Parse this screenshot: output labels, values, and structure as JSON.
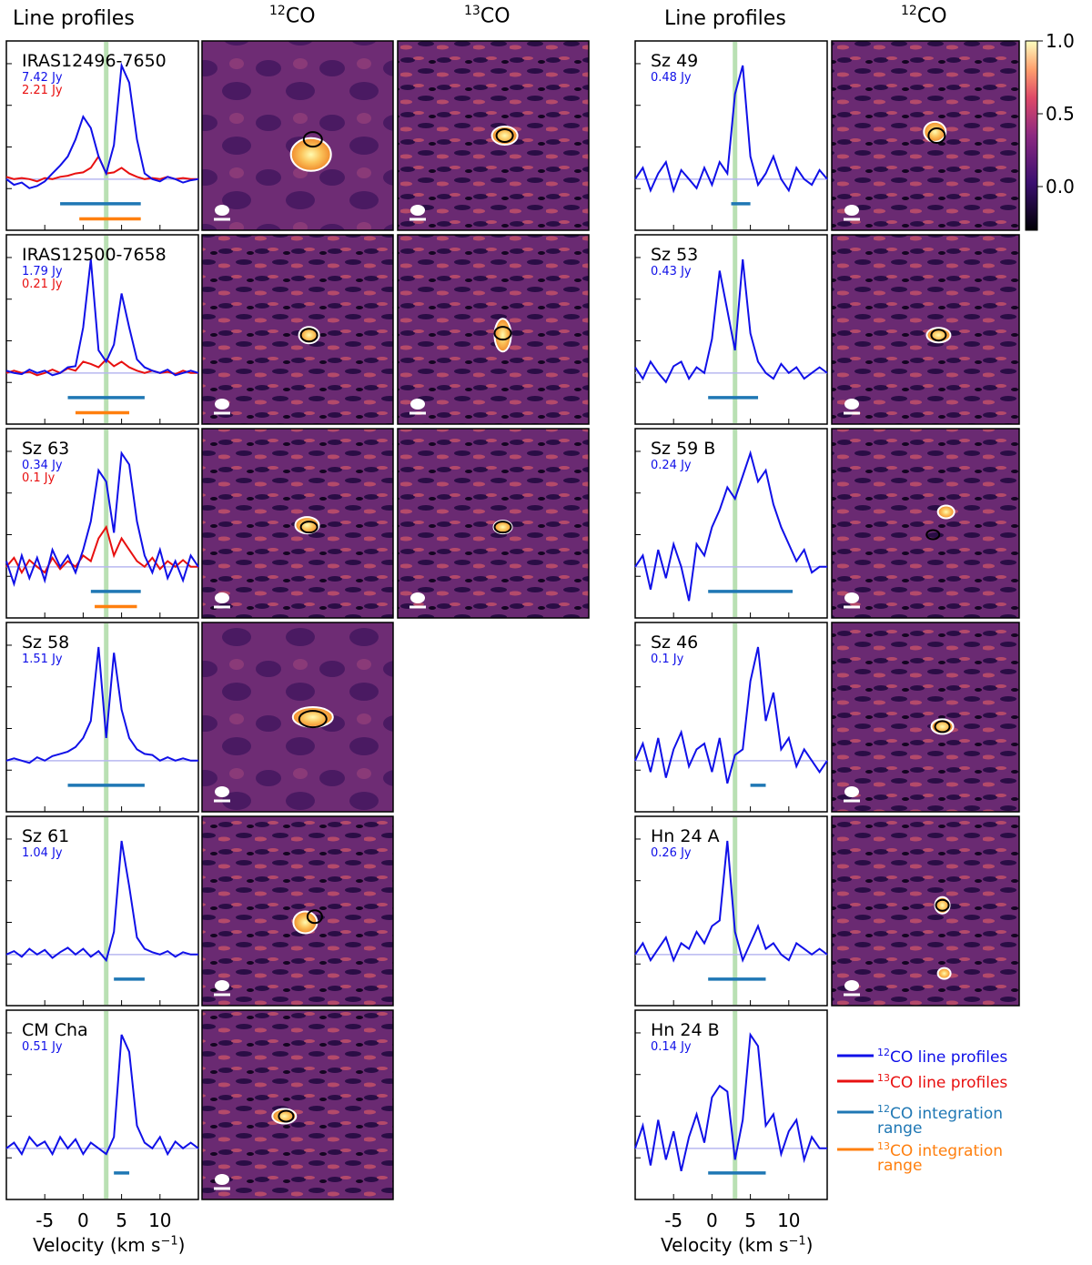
{
  "headers": {
    "line_profiles": "Line profiles",
    "co12_pre": "12",
    "co12_post": "CO",
    "co13_pre": "13",
    "co13_post": "CO"
  },
  "xaxis": {
    "label_main": "Velocity (km s",
    "label_exp": "−1",
    "label_close": ")",
    "ticks": [
      -5,
      0,
      5,
      10
    ],
    "tick_labels": [
      "-5",
      "0",
      "5",
      "10"
    ],
    "xlim": [
      -10,
      15
    ],
    "systemic_velocity": 3
  },
  "colorbar": {
    "ticks": [
      1.0,
      0.5,
      0.0
    ],
    "tick_labels": [
      "1.0",
      "0.5",
      "0.0"
    ],
    "range": [
      -0.3,
      1.0
    ]
  },
  "colors": {
    "co12_line": "#1010e8",
    "co13_line": "#e81010",
    "co12_range": "#1f77b4",
    "co13_range": "#ff7f0e",
    "systemic": "#a8d8a0",
    "contour": "#ffffff",
    "ellipse": "#000000"
  },
  "legend": [
    {
      "pre": "12",
      "text": "CO line profiles",
      "color": "#1010e8",
      "kind": "line"
    },
    {
      "pre": "13",
      "text": "CO line profiles",
      "color": "#e81010",
      "kind": "line"
    },
    {
      "pre": "12",
      "text": "CO integration",
      "text2": "range",
      "color": "#1f77b4",
      "kind": "range"
    },
    {
      "pre": "13",
      "text": "CO integration",
      "text2": "range",
      "color": "#ff7f0e",
      "kind": "range"
    }
  ],
  "chart_data": [
    {
      "type": "line",
      "name": "IRAS12496-7650",
      "flux12": "7.42 Jy",
      "flux13": "2.21 Jy",
      "x": [
        -10,
        -9,
        -8,
        -7,
        -6,
        -5,
        -4,
        -3,
        -2,
        -1,
        0,
        1,
        2,
        3,
        4,
        5,
        6,
        7,
        8,
        9,
        10,
        11,
        12,
        13,
        14,
        15
      ],
      "series12": [
        0.0,
        -0.05,
        -0.03,
        -0.08,
        -0.06,
        -0.02,
        0.05,
        0.12,
        0.2,
        0.35,
        0.55,
        0.45,
        0.2,
        0.05,
        0.3,
        1.0,
        0.85,
        0.35,
        0.05,
        0.0,
        -0.02,
        0.02,
        0.0,
        -0.03,
        -0.01,
        0.0
      ],
      "series13": [
        0.02,
        0.0,
        0.01,
        0.0,
        -0.02,
        0.01,
        0.0,
        0.02,
        0.03,
        0.05,
        0.06,
        0.1,
        0.2,
        0.05,
        0.06,
        0.1,
        0.05,
        0.02,
        0.0,
        0.01,
        0.0,
        0.02,
        0.0,
        0.01,
        0.0,
        0.0
      ],
      "range12": [
        -3,
        7.5
      ],
      "range13": [
        -0.5,
        7.5
      ]
    },
    {
      "type": "line",
      "name": "IRAS12500-7658",
      "flux12": "1.79 Jy",
      "flux13": "0.21 Jy",
      "x": [
        -10,
        -9,
        -8,
        -7,
        -6,
        -5,
        -4,
        -3,
        -2,
        -1,
        0,
        1,
        2,
        3,
        4,
        5,
        6,
        7,
        8,
        9,
        10,
        11,
        12,
        13,
        14,
        15
      ],
      "series12": [
        0.02,
        0.0,
        -0.01,
        0.03,
        0.0,
        0.02,
        -0.02,
        0.0,
        0.05,
        0.06,
        0.4,
        1.0,
        0.2,
        0.1,
        0.25,
        0.7,
        0.4,
        0.12,
        0.05,
        0.02,
        0.0,
        0.03,
        -0.02,
        0.0,
        0.02,
        0.0
      ],
      "series13": [
        0.0,
        0.02,
        0.0,
        0.01,
        -0.02,
        0.0,
        0.03,
        0.0,
        0.04,
        0.02,
        0.1,
        0.08,
        0.05,
        0.12,
        0.06,
        0.1,
        0.05,
        0.02,
        0.0,
        0.02,
        0.0,
        0.01,
        -0.01,
        0.02,
        0.0,
        0.0
      ],
      "range12": [
        -2,
        8
      ],
      "range13": [
        -1,
        6
      ]
    },
    {
      "type": "line",
      "name": "Sz 63",
      "flux12": "0.34 Jy",
      "flux13": "0.1 Jy",
      "x": [
        -10,
        -9,
        -8,
        -7,
        -6,
        -5,
        -4,
        -3,
        -2,
        -1,
        0,
        1,
        2,
        3,
        4,
        5,
        6,
        7,
        8,
        9,
        10,
        11,
        12,
        13,
        14,
        15
      ],
      "series12": [
        0.05,
        -0.15,
        0.1,
        -0.1,
        0.08,
        -0.12,
        0.15,
        0.0,
        0.1,
        -0.05,
        0.15,
        0.4,
        0.85,
        0.75,
        0.3,
        1.0,
        0.9,
        0.4,
        0.1,
        -0.05,
        0.15,
        -0.1,
        0.05,
        -0.12,
        0.1,
        0.0
      ],
      "series13": [
        0.0,
        0.08,
        -0.05,
        0.06,
        0.0,
        -0.05,
        0.08,
        -0.02,
        0.05,
        0.0,
        0.1,
        0.05,
        0.25,
        0.35,
        0.1,
        0.25,
        0.15,
        0.05,
        0.0,
        0.08,
        -0.02,
        0.05,
        0.0,
        0.06,
        0.0,
        0.0
      ],
      "range12": [
        1,
        7.5
      ],
      "range13": [
        1.5,
        7
      ]
    },
    {
      "type": "line",
      "name": "Sz 58",
      "flux12": "1.51 Jy",
      "x": [
        -10,
        -9,
        -8,
        -7,
        -6,
        -5,
        -4,
        -3,
        -2,
        -1,
        0,
        1,
        2,
        3,
        4,
        5,
        6,
        7,
        8,
        9,
        10,
        11,
        12,
        13,
        14,
        15
      ],
      "series12": [
        0.0,
        0.02,
        0.0,
        -0.02,
        0.03,
        0.0,
        0.04,
        0.06,
        0.08,
        0.12,
        0.2,
        0.35,
        1.0,
        0.2,
        0.95,
        0.45,
        0.2,
        0.1,
        0.06,
        0.05,
        0.0,
        0.03,
        0.0,
        0.02,
        0.0,
        0.0
      ],
      "range12": [
        -2,
        8
      ]
    },
    {
      "type": "line",
      "name": "Sz 61",
      "flux12": "1.04 Jy",
      "x": [
        -10,
        -9,
        -8,
        -7,
        -6,
        -5,
        -4,
        -3,
        -2,
        -1,
        0,
        1,
        2,
        3,
        4,
        5,
        6,
        7,
        8,
        9,
        10,
        11,
        12,
        13,
        14,
        15
      ],
      "series12": [
        0.0,
        0.03,
        -0.02,
        0.05,
        0.0,
        0.04,
        -0.03,
        0.02,
        0.06,
        0.0,
        0.05,
        -0.02,
        0.03,
        -0.05,
        0.2,
        1.0,
        0.6,
        0.15,
        0.05,
        0.02,
        0.0,
        0.03,
        -0.02,
        0.02,
        0.0,
        0.0
      ],
      "range12": [
        4,
        8
      ]
    },
    {
      "type": "line",
      "name": "CM Cha",
      "flux12": "0.51 Jy",
      "x": [
        -10,
        -9,
        -8,
        -7,
        -6,
        -5,
        -4,
        -3,
        -2,
        -1,
        0,
        1,
        2,
        3,
        4,
        5,
        6,
        7,
        8,
        9,
        10,
        11,
        12,
        13,
        14,
        15
      ],
      "series12": [
        0.0,
        0.05,
        -0.05,
        0.1,
        0.02,
        0.06,
        -0.05,
        0.1,
        0.0,
        0.08,
        -0.05,
        0.05,
        0.0,
        -0.05,
        0.1,
        1.0,
        0.85,
        0.2,
        0.05,
        0.0,
        0.1,
        -0.05,
        0.06,
        0.0,
        0.05,
        0.0
      ],
      "range12": [
        4,
        6
      ]
    },
    {
      "type": "line",
      "name": "Sz 49",
      "flux12": "0.48 Jy",
      "x": [
        -10,
        -9,
        -8,
        -7,
        -6,
        -5,
        -4,
        -3,
        -2,
        -1,
        0,
        1,
        2,
        3,
        4,
        5,
        6,
        7,
        8,
        9,
        10,
        11,
        12,
        13,
        14,
        15
      ],
      "series12": [
        0.0,
        0.1,
        -0.1,
        0.05,
        0.15,
        -0.1,
        0.08,
        0.0,
        -0.08,
        0.1,
        -0.05,
        0.15,
        0.05,
        0.75,
        1.0,
        0.2,
        -0.05,
        0.05,
        0.2,
        0.0,
        -0.1,
        0.1,
        0.0,
        -0.05,
        0.08,
        0.0
      ],
      "range12": [
        2.5,
        5
      ]
    },
    {
      "type": "line",
      "name": "Sz 53",
      "flux12": "0.43 Jy",
      "x": [
        -10,
        -9,
        -8,
        -7,
        -6,
        -5,
        -4,
        -3,
        -2,
        -1,
        0,
        1,
        2,
        3,
        4,
        5,
        6,
        7,
        8,
        9,
        10,
        11,
        12,
        13,
        14,
        15
      ],
      "series12": [
        0.05,
        -0.05,
        0.1,
        0.0,
        -0.08,
        0.06,
        0.1,
        -0.05,
        0.05,
        0.0,
        0.3,
        0.9,
        0.55,
        0.2,
        1.0,
        0.35,
        0.1,
        0.0,
        -0.05,
        0.08,
        0.0,
        0.05,
        -0.05,
        0.0,
        0.05,
        0.0
      ],
      "range12": [
        -0.5,
        6
      ]
    },
    {
      "type": "line",
      "name": "Sz 59 B",
      "flux12": "0.24 Jy",
      "x": [
        -10,
        -9,
        -8,
        -7,
        -6,
        -5,
        -4,
        -3,
        -2,
        -1,
        0,
        1,
        2,
        3,
        4,
        5,
        6,
        7,
        8,
        9,
        10,
        11,
        12,
        13,
        14,
        15
      ],
      "series12": [
        0.0,
        0.1,
        -0.2,
        0.15,
        -0.1,
        0.2,
        0.0,
        -0.3,
        0.2,
        0.1,
        0.35,
        0.5,
        0.7,
        0.6,
        0.8,
        1.0,
        0.75,
        0.85,
        0.55,
        0.35,
        0.2,
        0.05,
        0.15,
        -0.05,
        0.0,
        0.0
      ],
      "range12": [
        -0.5,
        10.5
      ]
    },
    {
      "type": "line",
      "name": "Sz 46",
      "flux12": "0.1 Jy",
      "x": [
        -10,
        -9,
        -8,
        -7,
        -6,
        -5,
        -4,
        -3,
        -2,
        -1,
        0,
        1,
        2,
        3,
        4,
        5,
        6,
        7,
        8,
        9,
        10,
        11,
        12,
        13,
        14,
        15
      ],
      "series12": [
        0.0,
        0.15,
        -0.1,
        0.2,
        -0.15,
        0.1,
        0.25,
        -0.05,
        0.1,
        0.15,
        -0.1,
        0.2,
        -0.2,
        0.05,
        0.1,
        0.7,
        1.0,
        0.35,
        0.6,
        0.1,
        0.2,
        -0.05,
        0.1,
        0.0,
        -0.1,
        0.0
      ],
      "range12": [
        5,
        7
      ]
    },
    {
      "type": "line",
      "name": "Hn 24 A",
      "flux12": "0.26 Jy",
      "x": [
        -10,
        -9,
        -8,
        -7,
        -6,
        -5,
        -4,
        -3,
        -2,
        -1,
        0,
        1,
        2,
        3,
        4,
        5,
        6,
        7,
        8,
        9,
        10,
        11,
        12,
        13,
        14,
        15
      ],
      "series12": [
        0.0,
        0.1,
        -0.05,
        0.05,
        0.15,
        -0.05,
        0.1,
        0.05,
        0.2,
        0.1,
        0.25,
        0.3,
        1.0,
        0.2,
        -0.05,
        0.1,
        0.25,
        0.05,
        0.1,
        0.0,
        -0.05,
        0.1,
        0.05,
        0.0,
        0.05,
        0.0
      ],
      "range12": [
        -0.5,
        7
      ]
    },
    {
      "type": "line",
      "name": "Hn 24 B",
      "flux12": "0.14 Jy",
      "x": [
        -10,
        -9,
        -8,
        -7,
        -6,
        -5,
        -4,
        -3,
        -2,
        -1,
        0,
        1,
        2,
        3,
        4,
        5,
        6,
        7,
        8,
        9,
        10,
        11,
        12,
        13,
        14,
        15
      ],
      "series12": [
        0.0,
        0.2,
        -0.15,
        0.25,
        -0.1,
        0.15,
        -0.2,
        0.1,
        0.3,
        0.05,
        0.45,
        0.55,
        0.5,
        -0.1,
        0.25,
        1.0,
        0.9,
        0.2,
        0.3,
        -0.05,
        0.15,
        0.25,
        -0.1,
        0.1,
        0.0,
        0.0
      ],
      "range12": [
        -0.5,
        7
      ]
    }
  ]
}
